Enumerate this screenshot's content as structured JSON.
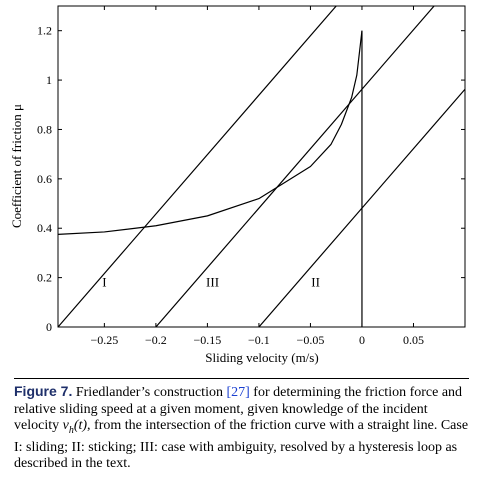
{
  "figure": {
    "chart_data": {
      "type": "line",
      "xlabel": "Sliding velocity (m/s)",
      "ylabel": "Coefficient of friction μ",
      "xlim": [
        -0.295,
        0.1
      ],
      "ylim": [
        0,
        1.3
      ],
      "x_ticks": [
        -0.25,
        -0.2,
        -0.15,
        -0.1,
        -0.05,
        0,
        0.05
      ],
      "x_tick_labels": [
        "−0.25",
        "−0.2",
        "−0.15",
        "−0.1",
        "−0.05",
        "0",
        "0.05"
      ],
      "y_ticks": [
        0,
        0.2,
        0.4,
        0.6,
        0.8,
        1,
        1.2
      ],
      "y_tick_labels": [
        "0",
        "0.2",
        "0.4",
        "0.6",
        "0.8",
        "1",
        "1.2"
      ],
      "grid": false,
      "series": [
        {
          "x": [
            -0.295,
            -0.25,
            -0.2,
            -0.15,
            -0.1,
            -0.05,
            -0.03,
            -0.02,
            -0.01,
            -0.005,
            0
          ],
          "y": [
            0.375,
            0.385,
            0.41,
            0.45,
            0.52,
            0.65,
            0.74,
            0.82,
            0.93,
            1.02,
            1.2
          ]
        },
        {
          "x": [
            0,
            0
          ],
          "y": [
            0,
            1.2
          ]
        },
        {
          "x": [
            -0.295,
            -0.025
          ],
          "y": [
            0,
            1.3
          ]
        },
        {
          "x": [
            -0.2,
            0.07
          ],
          "y": [
            0,
            1.3
          ]
        },
        {
          "x": [
            -0.1,
            0.1
          ],
          "y": [
            0,
            0.963
          ]
        }
      ],
      "annotations": [
        {
          "text": "I",
          "x": -0.25,
          "y": 0.18
        },
        {
          "text": "III",
          "x": -0.145,
          "y": 0.18
        },
        {
          "text": "II",
          "x": -0.045,
          "y": 0.18
        }
      ]
    }
  },
  "caption": {
    "label": "Figure 7.",
    "part1": " Friedlander’s construction ",
    "ref": "[27]",
    "part2": " for determining the friction force and relative sliding speed at a given moment, given knowledge of the incident velocity ",
    "math_v": "v",
    "math_sub": "h",
    "math_arg": "(t)",
    "part3": ", from the intersection of the friction curve with a straight line. Case I: sliding; II: sticking; III: case with ambiguity, resolved by a hysteresis loop as described in the text."
  }
}
